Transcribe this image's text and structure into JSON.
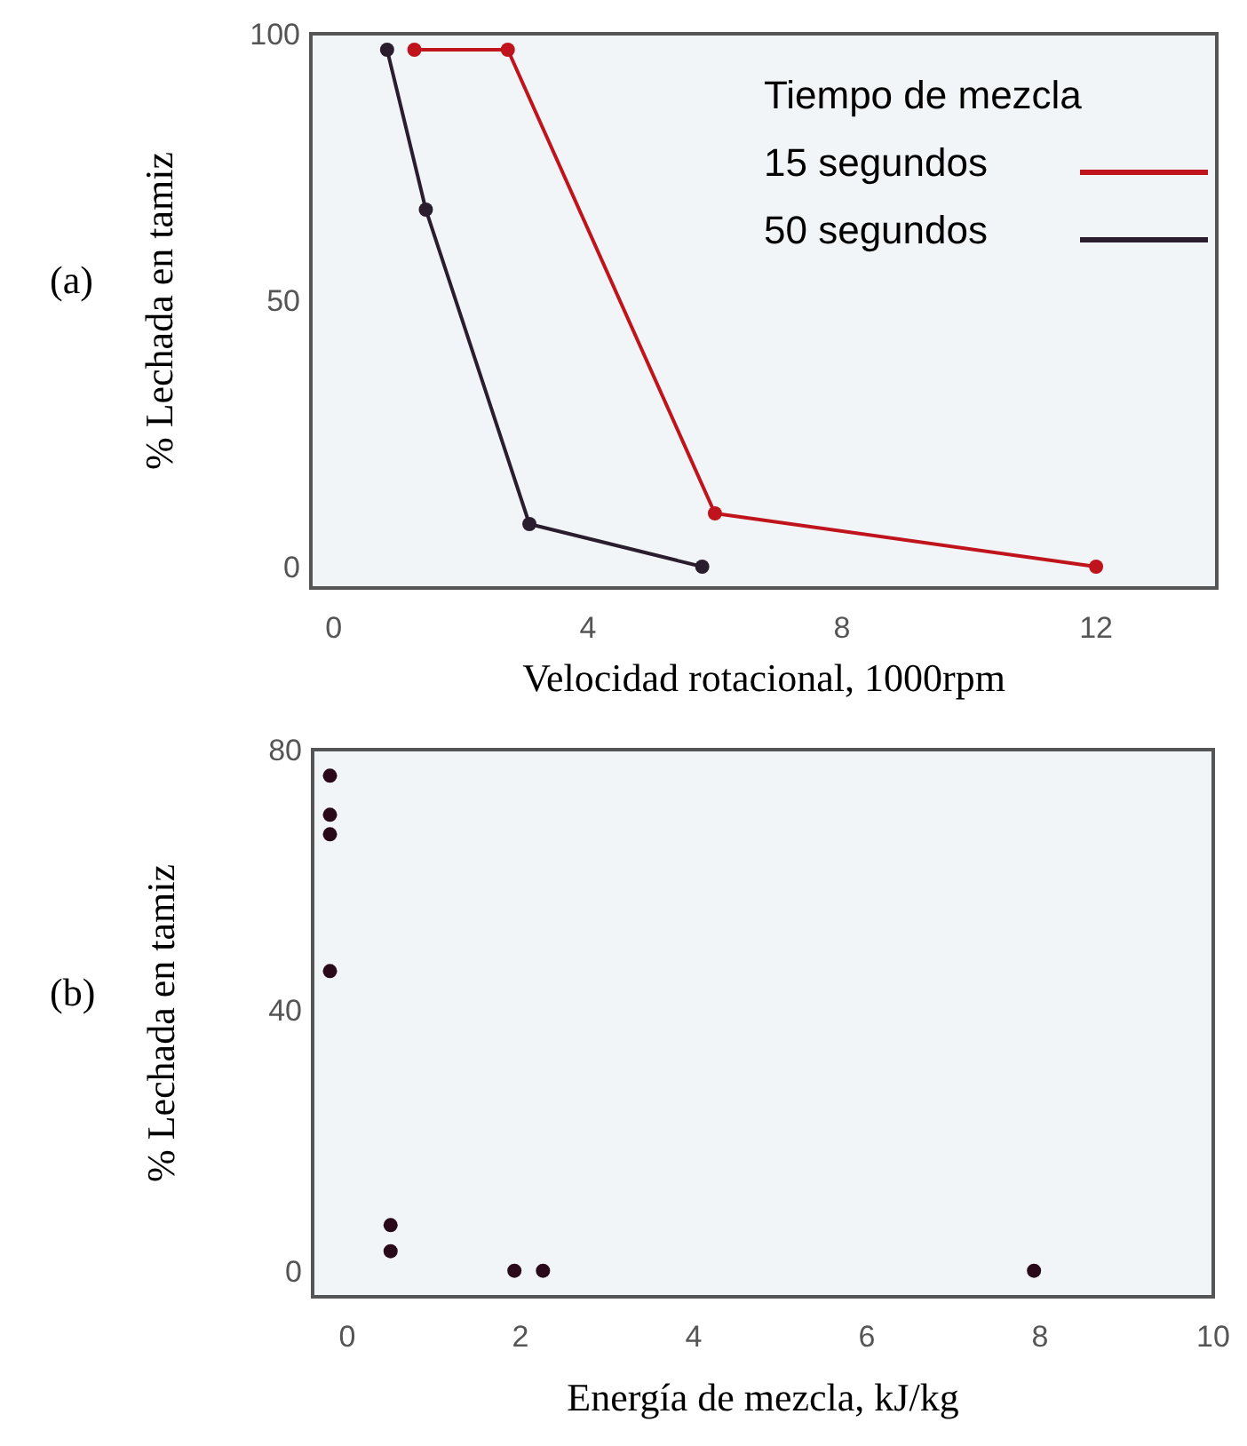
{
  "chart_data": [
    {
      "type": "line",
      "xlabel": "Velocidad rotacional, 1000rpm",
      "ylabel": "% Lechada en tamiz",
      "legend_title": "Tiempo de mezcla",
      "legend": "top right",
      "marker": "circle",
      "line_style": "solid",
      "xlim": [
        -0.36,
        13.9
      ],
      "ylim": [
        -4,
        100
      ],
      "xticks": [
        0,
        4,
        8,
        12
      ],
      "yticks": [
        0,
        50,
        100
      ],
      "annotations": [
        "(a)"
      ],
      "series": [
        {
          "name": "15 segundos",
          "color": "#c0141c",
          "x": [
            1.27,
            2.74,
            6.0,
            12.0
          ],
          "values": [
            97,
            97,
            10,
            0
          ]
        },
        {
          "name": "50 segundos",
          "color": "#2a1e2e",
          "x": [
            0.84,
            1.45,
            3.08,
            5.8
          ],
          "values": [
            97,
            67,
            8,
            0
          ]
        }
      ]
    },
    {
      "type": "scatter",
      "xlabel": "Energía de mezcla, kJ/kg",
      "ylabel": "% Lechada en tamiz",
      "marker": "circle",
      "xlim": [
        -0.4,
        10
      ],
      "ylim": [
        -4,
        80
      ],
      "xticks": [
        0,
        2,
        4,
        6,
        8,
        10
      ],
      "yticks": [
        0,
        40,
        80
      ],
      "annotations": [
        "(b)"
      ],
      "series": [
        {
          "color": "#2a0a1a",
          "x": [
            -0.2,
            -0.2,
            -0.2,
            -0.2,
            0.5,
            0.5,
            1.93,
            2.26,
            7.93
          ],
          "values": [
            76,
            70,
            67,
            46,
            7,
            3,
            0,
            0,
            0
          ]
        }
      ]
    }
  ]
}
